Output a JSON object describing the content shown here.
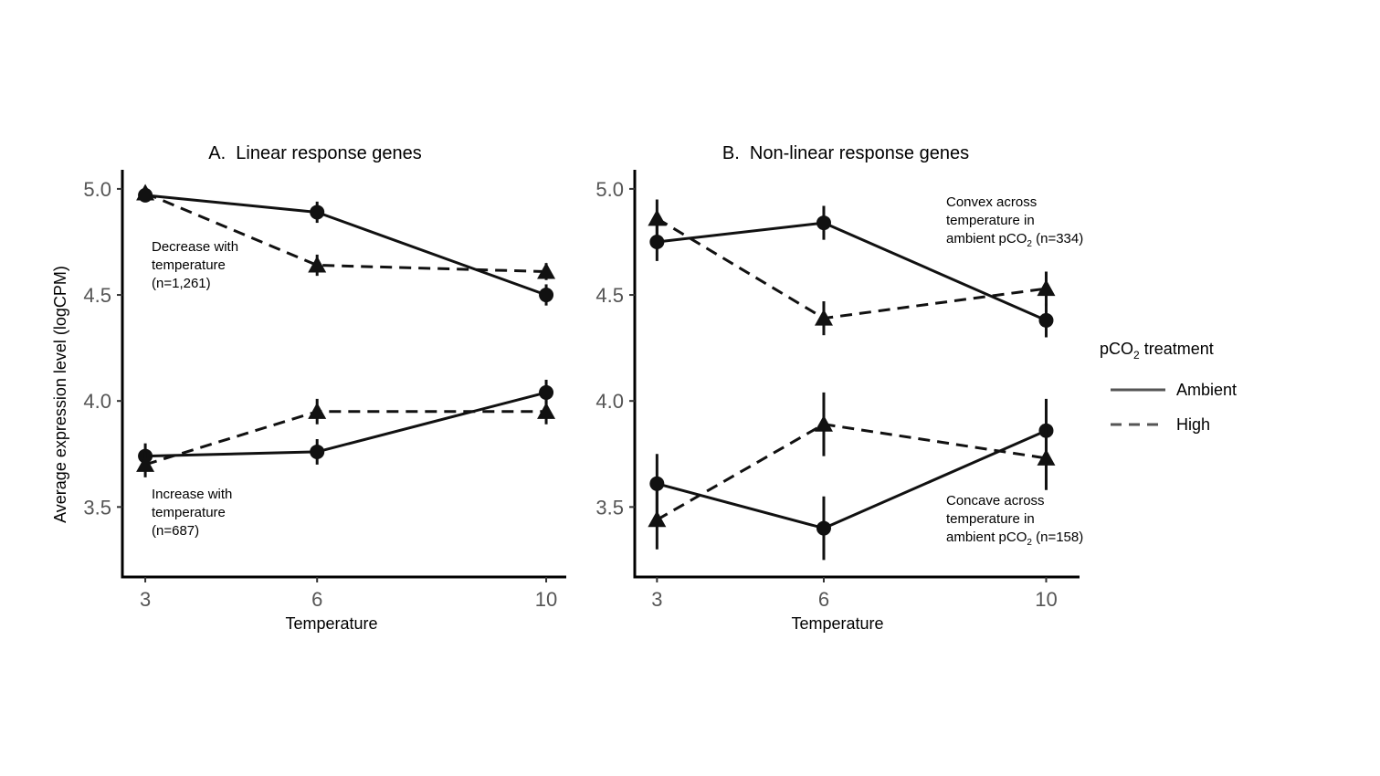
{
  "figure": {
    "y_axis_label": "Average expression level (logCPM)",
    "legend": {
      "title_prefix": "pCO",
      "title_sub": "2",
      "title_suffix": " treatment",
      "entries": [
        {
          "label": "Ambient",
          "linestyle": "solid"
        },
        {
          "label": "High",
          "linestyle": "dashed"
        }
      ]
    }
  },
  "chart_data": [
    {
      "type": "line",
      "title": "A.  Linear response genes",
      "xlabel": "Temperature",
      "ylabel": "Average expression level (logCPM)",
      "x_ticks": [
        3,
        6,
        10
      ],
      "y_ticks": [
        3.5,
        4.0,
        4.5,
        5.0
      ],
      "y_tick_labels": [
        "3.5",
        "4.0",
        "4.5",
        "5.0"
      ],
      "xlim": [
        2.6,
        10.35
      ],
      "ylim": [
        3.17,
        5.09
      ],
      "groups": [
        {
          "annotation": [
            "Decrease with",
            "temperature",
            "(n=1,261)"
          ],
          "series": [
            {
              "name": "Ambient",
              "marker": "circle",
              "x": [
                3,
                6,
                10
              ],
              "y": [
                4.97,
                4.89,
                4.5
              ],
              "err": [
                0.02,
                0.05,
                0.05
              ]
            },
            {
              "name": "High",
              "marker": "triangle",
              "x": [
                3,
                6,
                10
              ],
              "y": [
                4.98,
                4.64,
                4.61
              ],
              "err": [
                0.02,
                0.05,
                0.04
              ]
            }
          ]
        },
        {
          "annotation": [
            "Increase with",
            "temperature",
            "(n=687)"
          ],
          "series": [
            {
              "name": "Ambient",
              "marker": "circle",
              "x": [
                3,
                6,
                10
              ],
              "y": [
                3.74,
                3.76,
                4.04
              ],
              "err": [
                0.06,
                0.06,
                0.06
              ]
            },
            {
              "name": "High",
              "marker": "triangle",
              "x": [
                3,
                6,
                10
              ],
              "y": [
                3.7,
                3.95,
                3.95
              ],
              "err": [
                0.06,
                0.06,
                0.06
              ]
            }
          ]
        }
      ]
    },
    {
      "type": "line",
      "title": "B.  Non-linear response genes",
      "xlabel": "Temperature",
      "ylabel": "",
      "x_ticks": [
        3,
        6,
        10
      ],
      "y_ticks": [
        3.5,
        4.0,
        4.5,
        5.0
      ],
      "y_tick_labels": [
        "3.5",
        "4.0",
        "4.5",
        "5.0"
      ],
      "xlim": [
        2.6,
        10.6
      ],
      "ylim": [
        3.17,
        5.09
      ],
      "groups": [
        {
          "annotation": [
            "Convex across",
            "temperature in",
            "ambient pCO2 (n=334)"
          ],
          "series": [
            {
              "name": "Ambient",
              "marker": "circle",
              "x": [
                3,
                6,
                10
              ],
              "y": [
                4.75,
                4.84,
                4.38
              ],
              "err": [
                0.09,
                0.08,
                0.08
              ]
            },
            {
              "name": "High",
              "marker": "triangle",
              "x": [
                3,
                6,
                10
              ],
              "y": [
                4.86,
                4.39,
                4.53
              ],
              "err": [
                0.09,
                0.08,
                0.08
              ]
            }
          ]
        },
        {
          "annotation": [
            "Concave across",
            "temperature in",
            "ambient pCO2 (n=158)"
          ],
          "series": [
            {
              "name": "Ambient",
              "marker": "circle",
              "x": [
                3,
                6,
                10
              ],
              "y": [
                3.61,
                3.4,
                3.86
              ],
              "err": [
                0.14,
                0.15,
                0.15
              ]
            },
            {
              "name": "High",
              "marker": "triangle",
              "x": [
                3,
                6,
                10
              ],
              "y": [
                3.44,
                3.89,
                3.73
              ],
              "err": [
                0.14,
                0.15,
                0.15
              ]
            }
          ]
        }
      ]
    }
  ]
}
